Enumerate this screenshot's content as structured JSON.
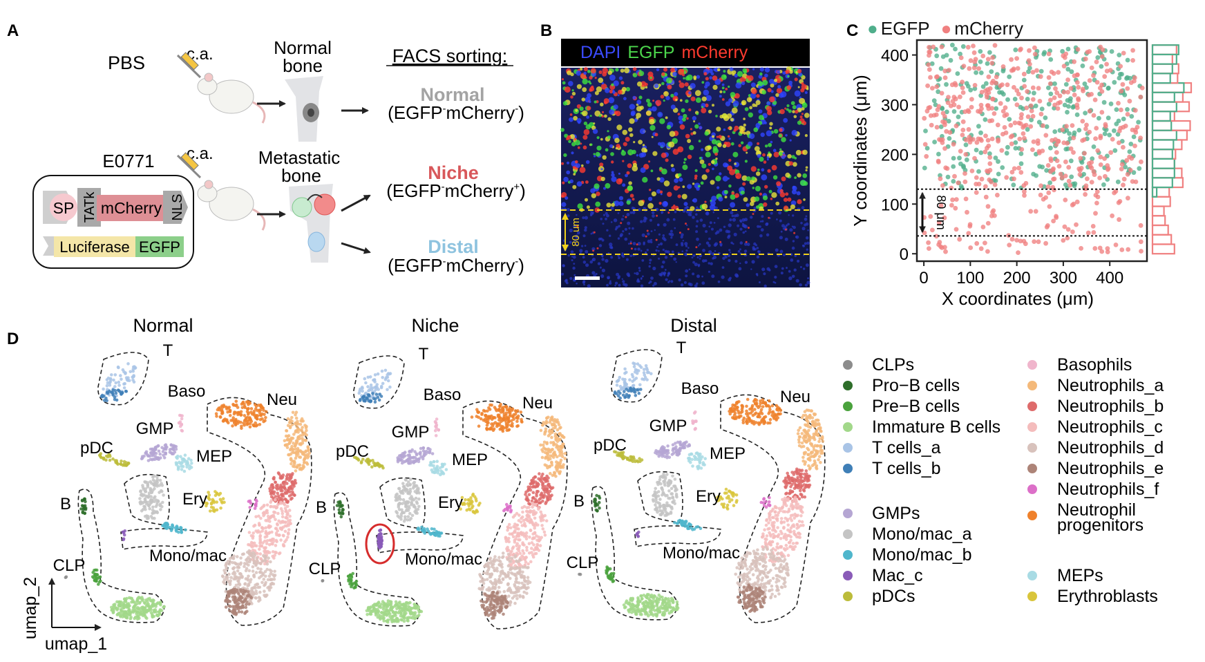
{
  "panel_letters": {
    "a": "A",
    "b": "B",
    "c": "C",
    "d": "D"
  },
  "panelA": {
    "pbs": "PBS",
    "ca1": "c.a.",
    "ca2": "c.a.",
    "normal_bone": [
      "Normal",
      "bone"
    ],
    "e0771": "E0771",
    "construct_sp": "SP",
    "construct_tatk": "TATk",
    "construct_mcherry": "mCherry",
    "construct_nls": "NLS",
    "construct_luciferase": "Luciferase",
    "construct_egfp": "EGFP",
    "metastatic_bone": [
      "Metastatic",
      "bone"
    ],
    "facs_title": "FACS sorting:",
    "groups": [
      {
        "name": "Normal",
        "formula": [
          "(EGFP",
          "-",
          "mCherry",
          "-",
          ")"
        ],
        "color": "#a3a3a3"
      },
      {
        "name": "Niche",
        "formula": [
          "(EGFP",
          "-",
          "mCherry",
          "+",
          ")"
        ],
        "color": "#d8575a"
      },
      {
        "name": "Distal",
        "formula": [
          "(EGFP",
          "-",
          "mCherry",
          "-",
          ")"
        ],
        "color": "#8ec3df"
      }
    ]
  },
  "panelB": {
    "stains": [
      {
        "label": "DAPI",
        "color": "#3b4bff"
      },
      {
        "label": "EGFP",
        "color": "#4cd64c"
      },
      {
        "label": "mCherry",
        "color": "#ff3b2f"
      }
    ],
    "band_label": "80 um"
  },
  "chart_data": [
    {
      "type": "scatter",
      "panel": "C",
      "xlabel": "X coordinates (μm)",
      "ylabel": "Y coordinates (μm)",
      "xlim": [
        -15,
        480
      ],
      "ylim": [
        -15,
        430
      ],
      "xticks": [
        0,
        100,
        200,
        300,
        400
      ],
      "yticks": [
        0,
        100,
        200,
        300,
        400
      ],
      "legend_position": "top",
      "series": [
        {
          "name": "EGFP",
          "color": "#4fae8b",
          "n_points": 320,
          "y_min": 130
        },
        {
          "name": "mCherry",
          "color": "#f08080",
          "n_points": 520,
          "y_min": 0
        }
      ],
      "band": {
        "y_low": 36,
        "y_high": 130,
        "label": "80 μm"
      },
      "marginal_histogram": "y"
    },
    {
      "type": "scatter",
      "panel": "D",
      "xlabel": "umap_1",
      "ylabel": "umap_2",
      "panels": [
        "Normal",
        "Niche",
        "Distal"
      ],
      "cluster_labels": [
        "T",
        "Baso",
        "Neu",
        "GMP",
        "pDC",
        "MEP",
        "Ery",
        "B",
        "Mono/mac",
        "CLP"
      ],
      "legend": [
        {
          "name": "CLPs",
          "color": "#8c8c8c"
        },
        {
          "name": "Pro−B cells",
          "color": "#2e6e2a"
        },
        {
          "name": "Pre−B cells",
          "color": "#4aa23d"
        },
        {
          "name": "Immature B cells",
          "color": "#a2d88a"
        },
        {
          "name": "T cells_a",
          "color": "#a9c4e6"
        },
        {
          "name": "T cells_b",
          "color": "#3f7fb7"
        },
        {
          "name": "GMPs",
          "color": "#b5a6d3"
        },
        {
          "name": "Mono/mac_a",
          "color": "#c4c4c4"
        },
        {
          "name": "Mono/mac_b",
          "color": "#4fb6cc"
        },
        {
          "name": "Mac_c",
          "color": "#8a5bb8"
        },
        {
          "name": "pDCs",
          "color": "#bcbc3a"
        },
        {
          "name": "Basophils",
          "color": "#f0b5cc"
        },
        {
          "name": "Neutrophils_a",
          "color": "#f4b97a"
        },
        {
          "name": "Neutrophils_b",
          "color": "#de6b6b"
        },
        {
          "name": "Neutrophils_c",
          "color": "#f4bcbc"
        },
        {
          "name": "Neutrophils_d",
          "color": "#d8c2bc"
        },
        {
          "name": "Neutrophils_e",
          "color": "#ad8478"
        },
        {
          "name": "Neutrophils_f",
          "color": "#dc6fc8"
        },
        {
          "name": "Neutrophil progenitors",
          "color": "#ef812c"
        },
        {
          "name": "MEPs",
          "color": "#a8dbe4"
        },
        {
          "name": "Erythroblasts",
          "color": "#d9c53b"
        }
      ]
    }
  ]
}
